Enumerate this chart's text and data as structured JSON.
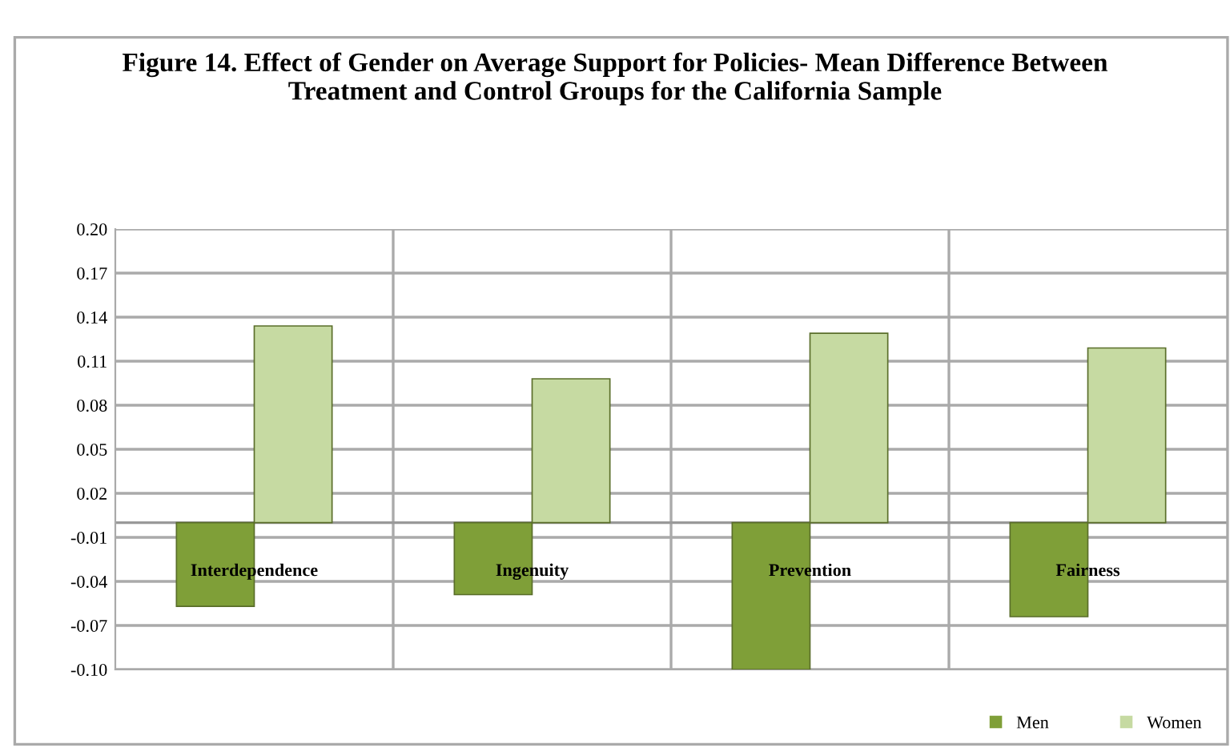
{
  "chart_data": {
    "type": "bar",
    "title": "Figure 14. Effect of Gender on Average Support for Policies- Mean Difference Between Treatment and Control Groups for the California Sample",
    "categories": [
      "Interdependence",
      "Ingenuity",
      "Prevention",
      "Fairness"
    ],
    "series": [
      {
        "name": "Men",
        "color": "#7f9f38",
        "values": [
          -0.057,
          -0.049,
          -0.1,
          -0.064
        ]
      },
      {
        "name": "Women",
        "color": "#c6daa2",
        "values": [
          0.134,
          0.098,
          0.129,
          0.119
        ]
      }
    ],
    "ylim": [
      -0.1,
      0.2
    ],
    "yticks": [
      {
        "value": 0.2,
        "label": "0.20"
      },
      0.17,
      0.14,
      0.11,
      0.08,
      0.05,
      0.02,
      -0.01,
      -0.04,
      -0.07,
      {
        "value": -0.1,
        "label": "-0.10"
      }
    ],
    "grid": true,
    "legend": "bottom right"
  }
}
